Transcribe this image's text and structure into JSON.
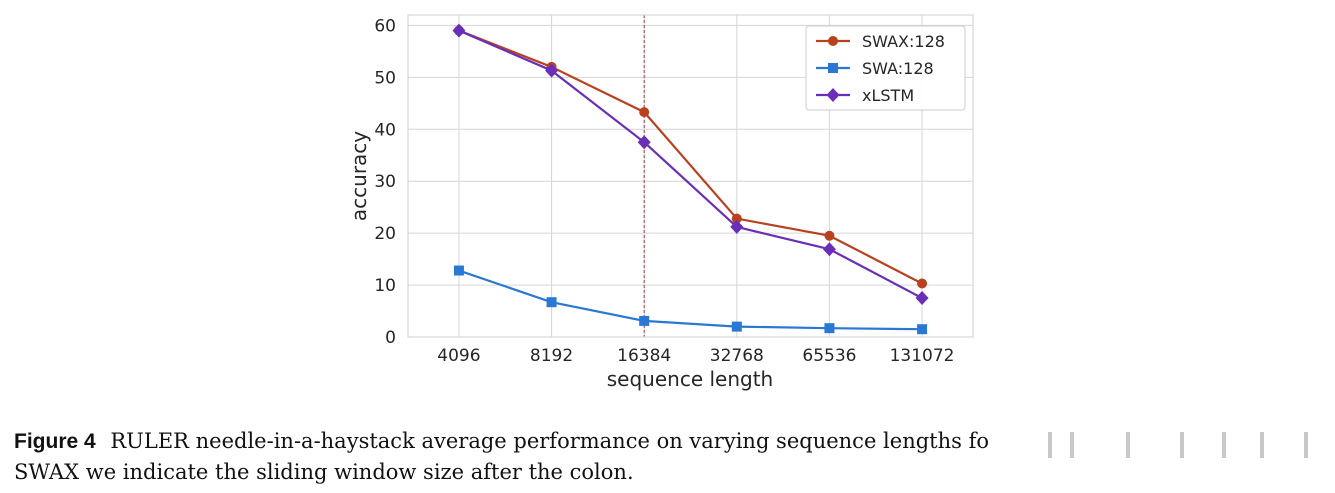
{
  "chart_data": {
    "type": "line",
    "title": "",
    "xlabel": "sequence length",
    "ylabel": "accuracy",
    "categories": [
      "4096",
      "8192",
      "16384",
      "32768",
      "65536",
      "131072"
    ],
    "ylim": [
      0,
      62
    ],
    "yticks": [
      0,
      10,
      20,
      30,
      40,
      50,
      60
    ],
    "grid": true,
    "legend_position": "top-right",
    "reference_line": {
      "category": "16384",
      "style": "dashed",
      "color": "#b03a3a"
    },
    "series": [
      {
        "name": "SWAX:128",
        "color": "#b8411f",
        "marker": "circle",
        "values": [
          59.0,
          52.0,
          43.3,
          22.8,
          19.5,
          10.3
        ]
      },
      {
        "name": "SWA:128",
        "color": "#2a78d4",
        "marker": "square",
        "values": [
          12.8,
          6.7,
          3.1,
          2.0,
          1.7,
          1.5
        ]
      },
      {
        "name": "xLSTM",
        "color": "#6a2fb8",
        "marker": "diamond",
        "values": [
          59.0,
          51.3,
          37.5,
          21.2,
          16.9,
          7.5
        ]
      }
    ]
  },
  "caption": {
    "label": "Figure 4",
    "text": "RULER needle-in-a-haystack average performance on varying sequence lengths fo",
    "text_line2": "SWAX we indicate the sliding window size after the colon."
  }
}
